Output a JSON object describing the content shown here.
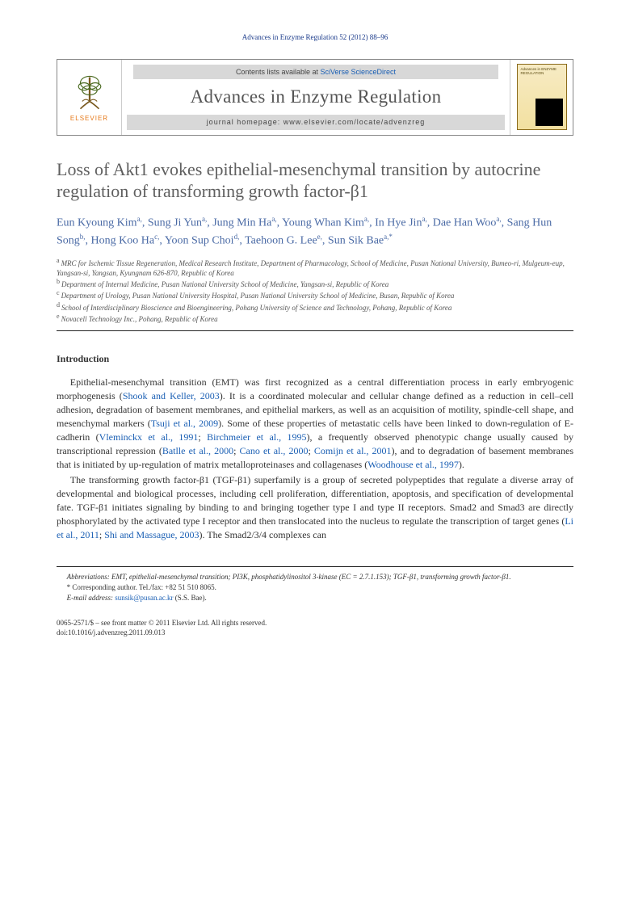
{
  "running_head": "Advances in Enzyme Regulation 52 (2012) 88–96",
  "header": {
    "publisher_label": "ELSEVIER",
    "contents_prefix": "Contents lists available at ",
    "contents_link": "SciVerse ScienceDirect",
    "journal_name": "Advances in Enzyme Regulation",
    "homepage_label": "journal homepage: www.elsevier.com/locate/advenzreg",
    "cover_title": "Advances in ENZYME REGULATION"
  },
  "article": {
    "title": "Loss of Akt1 evokes epithelial-mesenchymal transition by autocrine regulation of transforming growth factor-β1",
    "authors_html": "Eun Kyoung Kim|a|, Sung Ji Yun|a|, Jung Min Ha|a|, Young Whan Kim|a|, In Hye Jin|a|, Dae Han Woo|a|, Sang Hun Song|b|, Hong Koo Ha|c|, Yoon Sup Choi|d|, Taehoon G. Lee|e|, Sun Sik Bae|a,*"
  },
  "affiliations": [
    {
      "sup": "a",
      "text": "MRC for Ischemic Tissue Regeneration, Medical Research Institute, Department of Pharmacology, School of Medicine, Pusan National University, Bumeo-ri, Mulgeum-eup, Yangsan-si, Yangsan, Kyungnam 626-870, Republic of Korea"
    },
    {
      "sup": "b",
      "text": "Department of Internal Medicine, Pusan National University School of Medicine, Yangsan-si, Republic of Korea"
    },
    {
      "sup": "c",
      "text": "Department of Urology, Pusan National University Hospital, Pusan National University School of Medicine, Busan, Republic of Korea"
    },
    {
      "sup": "d",
      "text": "School of Interdisciplinary Bioscience and Bioengineering, Pohang University of Science and Technology, Pohang, Republic of Korea"
    },
    {
      "sup": "e",
      "text": "Novacell Technology Inc., Pohang, Republic of Korea"
    }
  ],
  "intro_heading": "Introduction",
  "paragraphs": {
    "p1_a": "Epithelial-mesenchymal transition (EMT) was first recognized as a central differentiation process in early embryogenic morphogenesis (",
    "p1_c1": "Shook and Keller, 2003",
    "p1_b": "). It is a coordinated molecular and cellular change defined as a reduction in cell–cell adhesion, degradation of basement membranes, and epithelial markers, as well as an acquisition of motility, spindle-cell shape, and mesenchymal markers (",
    "p1_c2": "Tsuji et al., 2009",
    "p1_c": "). Some of these properties of metastatic cells have been linked to down-regulation of E-cadherin (",
    "p1_c3": "Vleminckx et al., 1991",
    "p1_sep1": "; ",
    "p1_c4": "Birchmeier et al., 1995",
    "p1_d": "), a frequently observed phenotypic change usually caused by transcriptional repression (",
    "p1_c5": "Batlle et al., 2000",
    "p1_sep2": "; ",
    "p1_c6": "Cano et al., 2000",
    "p1_sep3": "; ",
    "p1_c7": "Comijn et al., 2001",
    "p1_e": "), and to degradation of basement membranes that is initiated by up-regulation of matrix metalloproteinases and collagenases (",
    "p1_c8": "Woodhouse et al., 1997",
    "p1_f": ").",
    "p2_a": "The transforming growth factor-β1 (TGF-β1) superfamily is a group of secreted polypeptides that regulate a diverse array of developmental and biological processes, including cell proliferation, differentiation, apoptosis, and specification of developmental fate. TGF-β1 initiates signaling by binding to and bringing together type I and type II receptors. Smad2 and Smad3 are directly phosphorylated by the activated type I receptor and then translocated into the nucleus to regulate the transcription of target genes (",
    "p2_c1": "Li et al., 2011",
    "p2_sep1": "; ",
    "p2_c2": "Shi and Massague, 2003",
    "p2_b": "). The Smad2/3/4 complexes can"
  },
  "footnotes": {
    "abbrev": "Abbreviations: EMT, epithelial-mesenchymal transition; PI3K, phosphatidylinositol 3-kinase (EC = 2.7.1.153); TGF-β1, transforming growth factor-β1.",
    "corr_label": "* Corresponding author. Tel./fax: +82 51 510 8065.",
    "email_label": "E-mail address: ",
    "email": "sunsik@pusan.ac.kr",
    "email_suffix": " (S.S. Bae)."
  },
  "bottom": {
    "line1": "0065-2571/$ – see front matter © 2011 Elsevier Ltd. All rights reserved.",
    "line2": "doi:10.1016/j.advenzreg.2011.09.013"
  },
  "colors": {
    "link": "#1a5fb4",
    "author": "#4a6aa5",
    "title_gray": "#5f5f5f",
    "elsevier_orange": "#e67817"
  }
}
